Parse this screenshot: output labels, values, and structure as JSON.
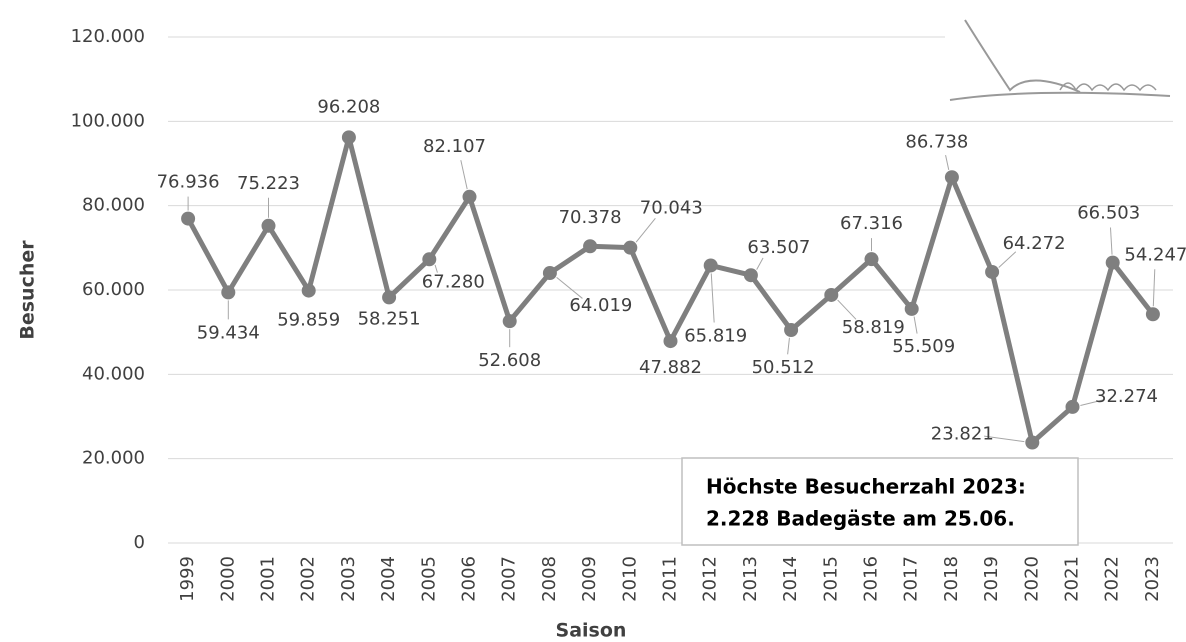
{
  "chart_data": {
    "type": "line",
    "x_label": "Saison",
    "y_label": "Besucher",
    "categories": [
      "1999",
      "2000",
      "2001",
      "2002",
      "2003",
      "2004",
      "2005",
      "2006",
      "2007",
      "2008",
      "2009",
      "2010",
      "2011",
      "2012",
      "2013",
      "2014",
      "2015",
      "2016",
      "2017",
      "2018",
      "2019",
      "2020",
      "2021",
      "2022",
      "2023"
    ],
    "series": [
      {
        "name": "Besucher",
        "color": "#7f7f7f",
        "values": [
          76936,
          59434,
          75223,
          59859,
          96208,
          58251,
          67280,
          82107,
          52608,
          64019,
          70378,
          70043,
          47882,
          65819,
          63507,
          50512,
          58819,
          67316,
          55509,
          86738,
          64272,
          23821,
          32274,
          66503,
          54247
        ],
        "value_labels": [
          "76.936",
          "59.434",
          "75.223",
          "59.859",
          "96.208",
          "58.251",
          "67.280",
          "82.107",
          "52.608",
          "64.019",
          "70.378",
          "70.043",
          "47.882",
          "65.819",
          "63.507",
          "50.512",
          "58.819",
          "67.316",
          "55.509",
          "86.738",
          "64.272",
          "23.821",
          "32.274",
          "66.503",
          "54.247"
        ]
      }
    ],
    "ylim": [
      0,
      120000
    ],
    "yticks": [
      0,
      {
        "value": 20000,
        "label": "20.000"
      },
      {
        "value": 40000,
        "label": "40.000"
      },
      {
        "value": 60000,
        "label": "60.000"
      },
      {
        "value": 80000,
        "label": "80.000"
      },
      {
        "value": 100000,
        "label": "100.000"
      },
      {
        "value": 120000,
        "label": "120.000"
      }
    ],
    "grid": true,
    "annotation": [
      "Höchste Besucherzahl 2023:",
      "2.228 Badegäste am 25.06."
    ]
  }
}
